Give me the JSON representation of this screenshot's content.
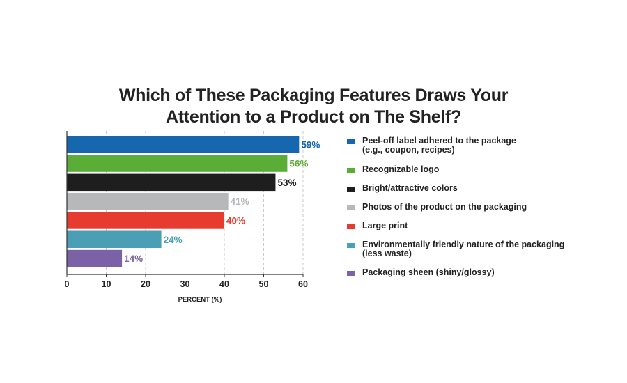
{
  "title": {
    "line1": "Which of These Packaging Features Draws Your",
    "line2": "Attention to a Product on The Shelf?"
  },
  "chart_data": {
    "type": "bar",
    "orientation": "horizontal",
    "categories": [
      "Peel-off label adhered to the package (e.g., coupon, recipes)",
      "Recognizable logo",
      "Bright/attractive colors",
      "Photos of the product on the packaging",
      "Large print",
      "Environmentally friendly nature of the packaging (less waste)",
      "Packaging sheen (shiny/glossy)"
    ],
    "values": [
      59,
      56,
      53,
      41,
      40,
      24,
      14
    ],
    "value_labels": [
      "59%",
      "56%",
      "53%",
      "41%",
      "40%",
      "24%",
      "14%"
    ],
    "colors": [
      "#1667ae",
      "#5aae37",
      "#1e1e1e",
      "#b7b8ba",
      "#e83b2f",
      "#4a9fb4",
      "#7b61a6"
    ],
    "xlabel": "PERCENT (%)",
    "xlim": [
      0,
      60
    ],
    "xticks": [
      0,
      10,
      20,
      30,
      40,
      50,
      60
    ],
    "grid": "vertical dashed",
    "legend_position": "right"
  },
  "legend": [
    {
      "line1": "Peel-off label adhered to the package",
      "line2": "(e.g., coupon, recipes)"
    },
    {
      "line1": "Recognizable logo",
      "line2": ""
    },
    {
      "line1": "Bright/attractive colors",
      "line2": ""
    },
    {
      "line1": "Photos of the product on the packaging",
      "line2": ""
    },
    {
      "line1": "Large print",
      "line2": ""
    },
    {
      "line1": "Environmentally friendly nature of the packaging",
      "line2": "(less waste)"
    },
    {
      "line1": "Packaging sheen (shiny/glossy)",
      "line2": ""
    }
  ]
}
